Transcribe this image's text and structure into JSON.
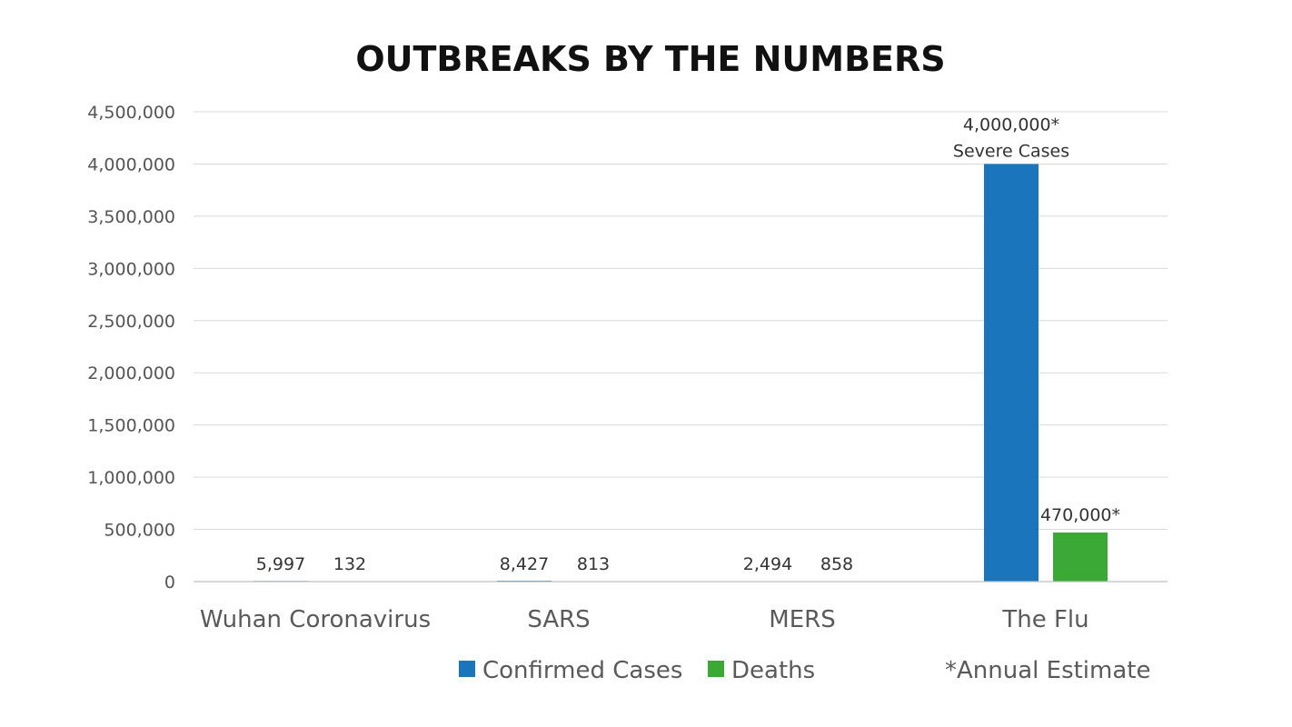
{
  "chart_data": {
    "type": "bar",
    "title": "OUTBREAKS BY THE NUMBERS",
    "categories": [
      "Wuhan Coronavirus",
      "SARS",
      "MERS",
      "The Flu"
    ],
    "series": [
      {
        "name": "Confirmed Cases",
        "color": "#1a75bc",
        "values": [
          5997,
          8427,
          2494,
          4000000
        ]
      },
      {
        "name": "Deaths",
        "color": "#3aa935",
        "values": [
          132,
          813,
          858,
          470000
        ]
      }
    ],
    "data_labels": [
      [
        "5,997",
        "8,427",
        "2,494",
        "4,000,000*"
      ],
      [
        "132",
        "813",
        "858",
        "470,000*"
      ]
    ],
    "annotation": {
      "category": "The Flu",
      "series": "Confirmed Cases",
      "text": "Severe Cases"
    },
    "ylim": [
      0,
      4500000
    ],
    "yticks": [
      0,
      500000,
      1000000,
      1500000,
      2000000,
      2500000,
      3000000,
      3500000,
      4000000,
      4500000
    ],
    "ytick_labels": [
      "0",
      "500,000",
      "1,000,000",
      "1,500,000",
      "2,000,000",
      "2,500,000",
      "3,000,000",
      "3,500,000",
      "4,000,000",
      "4,500,000"
    ],
    "legend_note": "*Annual Estimate",
    "legend_position": "bottom",
    "grid": true
  }
}
